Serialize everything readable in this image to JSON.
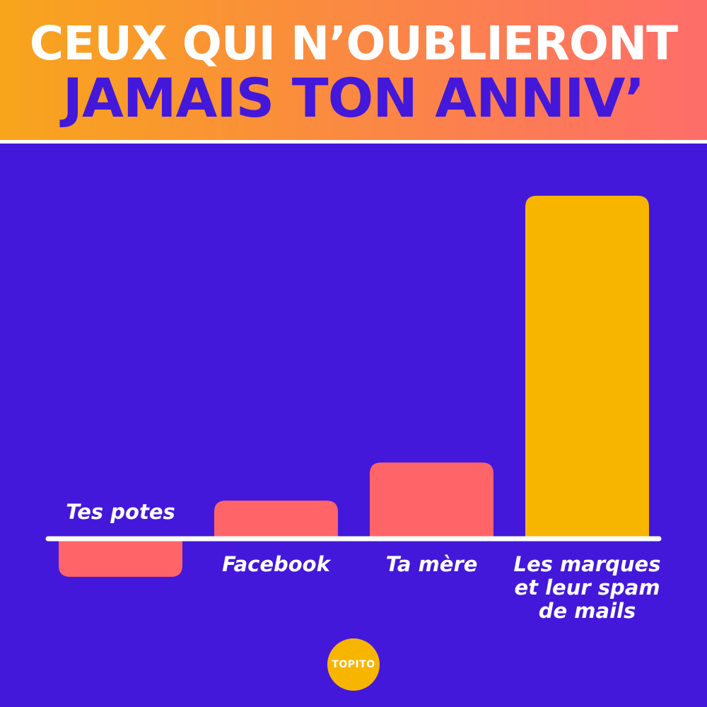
{
  "title": {
    "line1": "CEUX QUI N’OUBLIERONT",
    "line2": "JAMAIS TON ANNIV’"
  },
  "chart_data": {
    "type": "bar",
    "categories": [
      "Tes potes",
      "Facebook",
      "Ta mère",
      "Les marques et leur spam de mails"
    ],
    "category_lines": [
      [
        "Tes potes"
      ],
      [
        "Facebook"
      ],
      [
        "Ta mère"
      ],
      [
        "Les marques",
        "et leur spam",
        "de mails"
      ]
    ],
    "values": [
      -1,
      1,
      2,
      9
    ],
    "colors": [
      "#FF6468",
      "#FF6468",
      "#FF6468",
      "#F8B500"
    ],
    "ylim": [
      -1.5,
      9.5
    ],
    "grid": false,
    "legend": false
  },
  "logo": {
    "text": "TOPITO"
  },
  "colors": {
    "background": "#4318DA",
    "bar": "#FF6468",
    "highlight_bar": "#F8B500",
    "baseline": "#ffffff"
  }
}
